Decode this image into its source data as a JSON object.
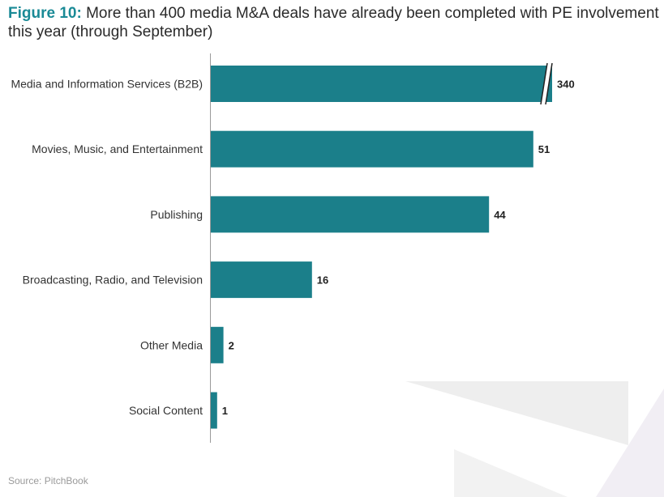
{
  "title": {
    "prefix": "Figure 10:",
    "text": "More than 400 media M&A deals have already been completed with PE involvement this year (through September)"
  },
  "source": "Source: PitchBook",
  "colors": {
    "bar": "#1b7f8a",
    "accent": "#1a8a96"
  },
  "chart_data": {
    "type": "bar",
    "orientation": "horizontal",
    "categories": [
      "Media and Information Services (B2B)",
      "Movies, Music, and Entertainment",
      "Publishing",
      "Broadcasting, Radio, and Television",
      "Other Media",
      "Social Content"
    ],
    "values": [
      340,
      51,
      44,
      16,
      2,
      1
    ],
    "data_labels": [
      "340",
      "51",
      "44",
      "16",
      "2",
      "1"
    ],
    "axis_break": {
      "category": "Media and Information Services (B2B)"
    },
    "xlim": [
      0,
      55
    ],
    "grid": false,
    "legend": false
  }
}
